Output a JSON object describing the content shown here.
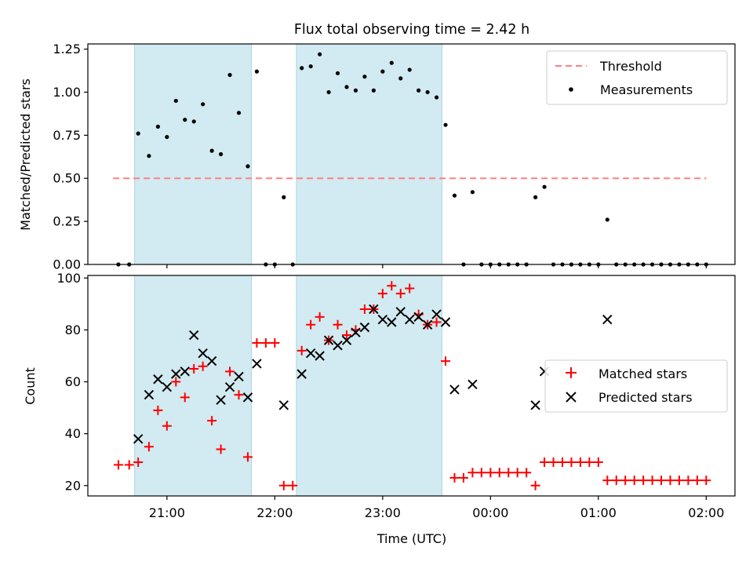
{
  "title": "Flux total observing time = 2.42 h",
  "colors": {
    "shade": "#add8e6",
    "threshold": "#ff8080",
    "measurement": "#000000",
    "matched": "#ff0000",
    "predicted": "#000000"
  },
  "chart_data": [
    {
      "type": "scatter",
      "ylabel": "Matched/Predicted stars",
      "ylim": [
        0,
        1.28
      ],
      "yticks": [
        "0.00",
        "0.25",
        "0.50",
        "0.75",
        "1.00",
        "1.25"
      ],
      "legend": {
        "placement": "top-right",
        "threshold_label": "Threshold",
        "measurements_label": "Measurements"
      },
      "threshold": {
        "value": 0.5,
        "x_range": [
          "20:30",
          "02:00"
        ]
      },
      "shaded_intervals": [
        [
          "20:42",
          "21:47"
        ],
        [
          "22:12",
          "23:33"
        ]
      ],
      "series": [
        {
          "name": "Measurements",
          "points": [
            [
              "20:33",
              0.0
            ],
            [
              "20:39",
              0.0
            ],
            [
              "20:44",
              0.76
            ],
            [
              "20:50",
              0.63
            ],
            [
              "20:55",
              0.8
            ],
            [
              "21:00",
              0.74
            ],
            [
              "21:05",
              0.95
            ],
            [
              "21:10",
              0.84
            ],
            [
              "21:15",
              0.83
            ],
            [
              "21:20",
              0.93
            ],
            [
              "21:25",
              0.66
            ],
            [
              "21:30",
              0.64
            ],
            [
              "21:35",
              1.1
            ],
            [
              "21:40",
              0.88
            ],
            [
              "21:45",
              0.57
            ],
            [
              "21:50",
              1.12
            ],
            [
              "21:55",
              0.0
            ],
            [
              "22:00",
              0.0
            ],
            [
              "22:05",
              0.39
            ],
            [
              "22:10",
              0.0
            ],
            [
              "22:15",
              1.14
            ],
            [
              "22:20",
              1.15
            ],
            [
              "22:25",
              1.22
            ],
            [
              "22:30",
              1.0
            ],
            [
              "22:35",
              1.11
            ],
            [
              "22:40",
              1.03
            ],
            [
              "22:45",
              1.01
            ],
            [
              "22:50",
              1.09
            ],
            [
              "22:55",
              1.01
            ],
            [
              "23:00",
              1.12
            ],
            [
              "23:05",
              1.17
            ],
            [
              "23:10",
              1.08
            ],
            [
              "23:15",
              1.13
            ],
            [
              "23:20",
              1.01
            ],
            [
              "23:25",
              1.0
            ],
            [
              "23:30",
              0.97
            ],
            [
              "23:35",
              0.81
            ],
            [
              "23:40",
              0.4
            ],
            [
              "23:45",
              0.0
            ],
            [
              "23:50",
              0.42
            ],
            [
              "23:55",
              0.0
            ],
            [
              "00:00",
              0.0
            ],
            [
              "00:05",
              0.0
            ],
            [
              "00:10",
              0.0
            ],
            [
              "00:15",
              0.0
            ],
            [
              "00:20",
              0.0
            ],
            [
              "00:25",
              0.39
            ],
            [
              "00:30",
              0.45
            ],
            [
              "00:35",
              0.0
            ],
            [
              "00:40",
              0.0
            ],
            [
              "00:45",
              0.0
            ],
            [
              "00:50",
              0.0
            ],
            [
              "00:55",
              0.0
            ],
            [
              "01:00",
              0.0
            ],
            [
              "01:05",
              0.26
            ],
            [
              "01:10",
              0.0
            ],
            [
              "01:15",
              0.0
            ],
            [
              "01:20",
              0.0
            ],
            [
              "01:25",
              0.0
            ],
            [
              "01:30",
              0.0
            ],
            [
              "01:35",
              0.0
            ],
            [
              "01:40",
              0.0
            ],
            [
              "01:45",
              0.0
            ],
            [
              "01:50",
              0.0
            ],
            [
              "01:55",
              0.0
            ],
            [
              "02:00",
              0.0
            ]
          ]
        }
      ]
    },
    {
      "type": "scatter",
      "ylabel": "Count",
      "xlabel": "Time (UTC)",
      "ylim": [
        16,
        101
      ],
      "yticks": [
        "20",
        "40",
        "60",
        "80",
        "100"
      ],
      "xlim": [
        "20:16",
        "02:16"
      ],
      "xticks": [
        "21:00",
        "22:00",
        "23:00",
        "00:00",
        "01:00",
        "02:00"
      ],
      "legend": {
        "placement": "center-right",
        "matched_label": "Matched stars",
        "predicted_label": "Predicted stars"
      },
      "shaded_intervals": [
        [
          "20:42",
          "21:47"
        ],
        [
          "22:12",
          "23:33"
        ]
      ],
      "series": [
        {
          "name": "Matched stars",
          "points": [
            [
              "20:33",
              28
            ],
            [
              "20:39",
              28
            ],
            [
              "20:44",
              29
            ],
            [
              "20:50",
              35
            ],
            [
              "20:55",
              49
            ],
            [
              "21:00",
              43
            ],
            [
              "21:05",
              60
            ],
            [
              "21:10",
              54
            ],
            [
              "21:15",
              65
            ],
            [
              "21:20",
              66
            ],
            [
              "21:25",
              45
            ],
            [
              "21:30",
              34
            ],
            [
              "21:35",
              64
            ],
            [
              "21:40",
              55
            ],
            [
              "21:45",
              31
            ],
            [
              "21:50",
              75
            ],
            [
              "21:55",
              75
            ],
            [
              "22:00",
              75
            ],
            [
              "22:05",
              20
            ],
            [
              "22:10",
              20
            ],
            [
              "22:15",
              72
            ],
            [
              "22:20",
              82
            ],
            [
              "22:25",
              85
            ],
            [
              "22:30",
              76
            ],
            [
              "22:35",
              82
            ],
            [
              "22:40",
              78
            ],
            [
              "22:45",
              80
            ],
            [
              "22:50",
              88
            ],
            [
              "22:55",
              88
            ],
            [
              "23:00",
              94
            ],
            [
              "23:05",
              97
            ],
            [
              "23:10",
              94
            ],
            [
              "23:15",
              96
            ],
            [
              "23:20",
              86
            ],
            [
              "23:25",
              82
            ],
            [
              "23:30",
              83
            ],
            [
              "23:35",
              68
            ],
            [
              "23:40",
              23
            ],
            [
              "23:45",
              23
            ],
            [
              "23:50",
              25
            ],
            [
              "23:55",
              25
            ],
            [
              "00:00",
              25
            ],
            [
              "00:05",
              25
            ],
            [
              "00:10",
              25
            ],
            [
              "00:15",
              25
            ],
            [
              "00:20",
              25
            ],
            [
              "00:25",
              20
            ],
            [
              "00:30",
              29
            ],
            [
              "00:35",
              29
            ],
            [
              "00:40",
              29
            ],
            [
              "00:45",
              29
            ],
            [
              "00:50",
              29
            ],
            [
              "00:55",
              29
            ],
            [
              "01:00",
              29
            ],
            [
              "01:05",
              22
            ],
            [
              "01:10",
              22
            ],
            [
              "01:15",
              22
            ],
            [
              "01:20",
              22
            ],
            [
              "01:25",
              22
            ],
            [
              "01:30",
              22
            ],
            [
              "01:35",
              22
            ],
            [
              "01:40",
              22
            ],
            [
              "01:45",
              22
            ],
            [
              "01:50",
              22
            ],
            [
              "01:55",
              22
            ],
            [
              "02:00",
              22
            ]
          ]
        },
        {
          "name": "Predicted stars",
          "points": [
            [
              "20:44",
              38
            ],
            [
              "20:50",
              55
            ],
            [
              "20:55",
              61
            ],
            [
              "21:00",
              58
            ],
            [
              "21:05",
              63
            ],
            [
              "21:10",
              64
            ],
            [
              "21:15",
              78
            ],
            [
              "21:20",
              71
            ],
            [
              "21:25",
              68
            ],
            [
              "21:30",
              53
            ],
            [
              "21:35",
              58
            ],
            [
              "21:40",
              62
            ],
            [
              "21:45",
              54
            ],
            [
              "21:50",
              67
            ],
            [
              "22:05",
              51
            ],
            [
              "22:15",
              63
            ],
            [
              "22:20",
              71
            ],
            [
              "22:25",
              70
            ],
            [
              "22:30",
              76
            ],
            [
              "22:35",
              74
            ],
            [
              "22:40",
              76
            ],
            [
              "22:45",
              79
            ],
            [
              "22:50",
              81
            ],
            [
              "22:55",
              88
            ],
            [
              "23:00",
              84
            ],
            [
              "23:05",
              83
            ],
            [
              "23:10",
              87
            ],
            [
              "23:15",
              84
            ],
            [
              "23:20",
              85
            ],
            [
              "23:25",
              82
            ],
            [
              "23:30",
              86
            ],
            [
              "23:35",
              83
            ],
            [
              "23:40",
              57
            ],
            [
              "23:50",
              59
            ],
            [
              "00:25",
              51
            ],
            [
              "00:30",
              64
            ],
            [
              "01:05",
              84
            ]
          ]
        }
      ]
    }
  ]
}
